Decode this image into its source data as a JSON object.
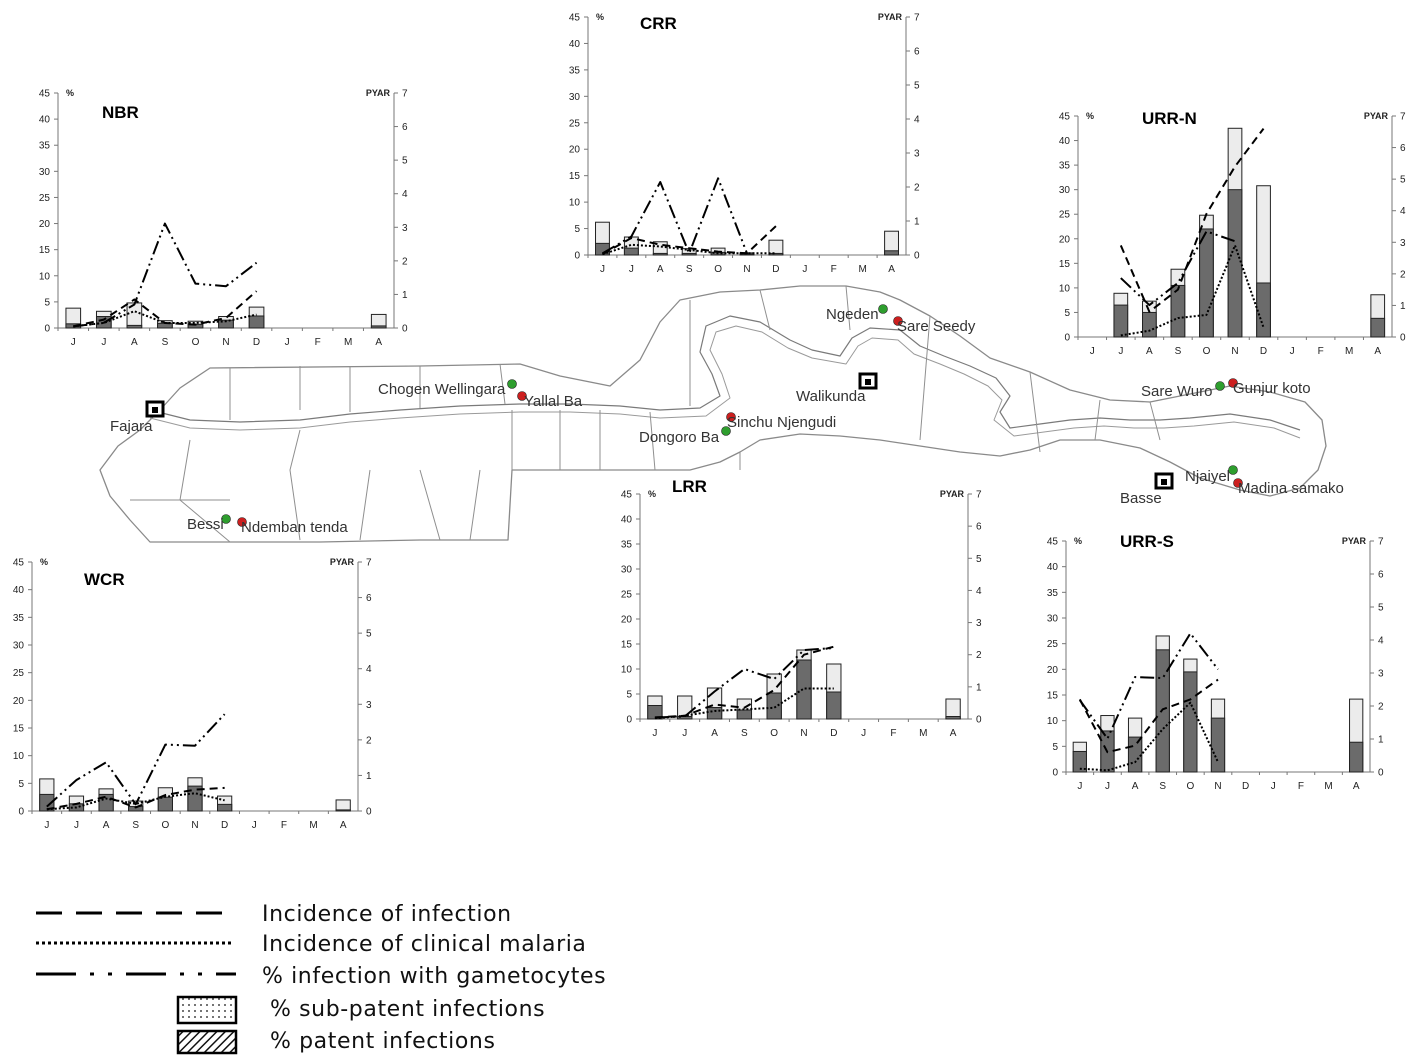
{
  "colors": {
    "patent_fill": "#6b6b6b",
    "subpatent_fill": "#ececec",
    "bar_stroke": "#222222",
    "green_village": "#2e9e2e",
    "red_village": "#cc1f1f",
    "map_line": "#8a8a8a"
  },
  "map": {
    "towns": [
      {
        "id": "fajara",
        "name": "Fajara"
      },
      {
        "id": "walikunda",
        "name": "Walikunda"
      },
      {
        "id": "basse",
        "name": "Basse"
      }
    ],
    "villages": [
      {
        "id": "chogen",
        "name": "Chogen Wellingara",
        "color": "green"
      },
      {
        "id": "yallal",
        "name": "Yallal Ba",
        "color": "red"
      },
      {
        "id": "ngeden",
        "name": "Ngeden",
        "color": "green"
      },
      {
        "id": "sareseedy",
        "name": "Sare Seedy",
        "color": "red"
      },
      {
        "id": "sarewuro",
        "name": "Sare Wuro",
        "color": "green"
      },
      {
        "id": "gunjur",
        "name": "Gunjur koto",
        "color": "red"
      },
      {
        "id": "dongoro",
        "name": "Dongoro Ba",
        "color": "green"
      },
      {
        "id": "sinchu",
        "name": "Sinchu Njengudi",
        "color": "red"
      },
      {
        "id": "njaiyel",
        "name": "Njaiyel",
        "color": "green"
      },
      {
        "id": "madina",
        "name": "Madina samako",
        "color": "red"
      },
      {
        "id": "bessi",
        "name": "Bessi",
        "color": "green"
      },
      {
        "id": "ndemban",
        "name": "Ndemban tenda",
        "color": "red"
      }
    ]
  },
  "chart_data": [
    {
      "id": "NBR",
      "type": "bar",
      "title": "NBR",
      "left_unit": "%",
      "right_unit": "PYAR",
      "categories": [
        "J",
        "J",
        "A",
        "S",
        "O",
        "N",
        "D",
        "J",
        "F",
        "M",
        "A"
      ],
      "ylim": [
        0,
        45
      ],
      "y_ticks": [
        0,
        5,
        10,
        15,
        20,
        25,
        30,
        35,
        40,
        45
      ],
      "y2lim": [
        0,
        7
      ],
      "y2_ticks": [
        0,
        1,
        2,
        3,
        4,
        5,
        6,
        7
      ],
      "patent": [
        0.8,
        2.2,
        0.5,
        0.9,
        0.7,
        1.5,
        2.3,
        null,
        null,
        null,
        0.4
      ],
      "total": [
        3.8,
        3.2,
        4.8,
        1.4,
        1.3,
        2.2,
        4.0,
        null,
        null,
        null,
        2.6
      ],
      "lines": [
        {
          "kind": "infection",
          "axis": "right",
          "values": [
            0.05,
            0.25,
            0.85,
            0.15,
            0.1,
            0.3,
            1.1,
            null,
            null,
            null,
            null
          ]
        },
        {
          "kind": "clinical",
          "axis": "right",
          "values": [
            0.05,
            0.15,
            0.5,
            0.15,
            0.15,
            0.2,
            0.4,
            null,
            null,
            null,
            null
          ]
        },
        {
          "kind": "gametocytes",
          "axis": "left",
          "values": [
            0.3,
            1.0,
            4.5,
            20,
            8.5,
            8.0,
            12.5,
            null,
            null,
            null,
            null
          ]
        }
      ]
    },
    {
      "id": "CRR",
      "type": "bar",
      "title": "CRR",
      "left_unit": "%",
      "right_unit": "PYAR",
      "categories": [
        "J",
        "J",
        "A",
        "S",
        "O",
        "N",
        "D",
        "J",
        "F",
        "M",
        "A"
      ],
      "ylim": [
        0,
        45
      ],
      "y_ticks": [
        0,
        5,
        10,
        15,
        20,
        25,
        30,
        35,
        40,
        45
      ],
      "y2lim": [
        0,
        7
      ],
      "y2_ticks": [
        0,
        1,
        2,
        3,
        4,
        5,
        6,
        7
      ],
      "patent": [
        2.2,
        1.3,
        0.3,
        0.3,
        0.5,
        0.2,
        0.3,
        null,
        null,
        null,
        0.8
      ],
      "total": [
        6.2,
        3.4,
        2.5,
        1.2,
        1.3,
        0.4,
        2.8,
        null,
        null,
        null,
        4.5
      ],
      "lines": [
        {
          "kind": "infection",
          "axis": "right",
          "values": [
            0.02,
            0.5,
            0.3,
            0.2,
            0.1,
            0.05,
            0.85,
            null,
            null,
            null,
            null
          ]
        },
        {
          "kind": "clinical",
          "axis": "right",
          "values": [
            0.02,
            0.3,
            0.25,
            0.15,
            0.05,
            0.05,
            0.05,
            null,
            null,
            null,
            null
          ]
        },
        {
          "kind": "gametocytes",
          "axis": "left",
          "values": [
            0.3,
            3.5,
            13.8,
            0.3,
            14.5,
            0.3,
            null,
            null,
            null,
            null,
            null
          ]
        }
      ]
    },
    {
      "id": "URR-N",
      "type": "bar",
      "title": "URR-N",
      "left_unit": "%",
      "right_unit": "PYAR",
      "categories": [
        "J",
        "J",
        "A",
        "S",
        "O",
        "N",
        "D",
        "J",
        "F",
        "M",
        "A"
      ],
      "ylim": [
        0,
        45
      ],
      "y_ticks": [
        0,
        5,
        10,
        15,
        20,
        25,
        30,
        35,
        40,
        45
      ],
      "y2lim": [
        0,
        7
      ],
      "y2_ticks": [
        0,
        1,
        2,
        3,
        4,
        5,
        6,
        7
      ],
      "patent": [
        null,
        6.5,
        5.0,
        10.5,
        22.0,
        30.0,
        11.0,
        null,
        null,
        null,
        3.8
      ],
      "total": [
        null,
        8.9,
        7.3,
        13.8,
        24.8,
        42.5,
        30.8,
        null,
        null,
        null,
        8.6
      ],
      "lines": [
        {
          "kind": "infection",
          "axis": "right",
          "values": [
            null,
            2.9,
            0.8,
            1.5,
            3.9,
            5.4,
            6.6,
            null,
            null,
            null,
            null
          ]
        },
        {
          "kind": "clinical",
          "axis": "right",
          "values": [
            null,
            0.05,
            0.2,
            0.6,
            0.7,
            2.9,
            0.3,
            null,
            null,
            null,
            null
          ]
        },
        {
          "kind": "gametocytes",
          "axis": "left",
          "values": [
            null,
            12,
            6.5,
            11,
            21.5,
            19.5,
            null,
            null,
            null,
            null,
            null
          ]
        }
      ]
    },
    {
      "id": "WCR",
      "type": "bar",
      "title": "WCR",
      "left_unit": "%",
      "right_unit": "PYAR",
      "categories": [
        "J",
        "J",
        "A",
        "S",
        "O",
        "N",
        "D",
        "J",
        "F",
        "M",
        "A"
      ],
      "ylim": [
        0,
        45
      ],
      "y_ticks": [
        0,
        5,
        10,
        15,
        20,
        25,
        30,
        35,
        40,
        45
      ],
      "y2lim": [
        0,
        7
      ],
      "y2_ticks": [
        0,
        1,
        2,
        3,
        4,
        5,
        6,
        7
      ],
      "patent": [
        3.0,
        1.3,
        3.0,
        0.8,
        2.5,
        4.5,
        1.2,
        null,
        null,
        null,
        0.2
      ],
      "total": [
        5.8,
        2.7,
        4.0,
        1.8,
        4.2,
        6.0,
        2.7,
        null,
        null,
        null,
        2.0
      ],
      "lines": [
        {
          "kind": "infection",
          "axis": "right",
          "values": [
            0.05,
            0.2,
            0.4,
            0.1,
            0.45,
            0.6,
            0.65,
            null,
            null,
            null,
            null
          ]
        },
        {
          "kind": "clinical",
          "axis": "right",
          "values": [
            0.05,
            0.1,
            0.35,
            0.2,
            0.4,
            0.5,
            0.3,
            null,
            null,
            null,
            null
          ]
        },
        {
          "kind": "gametocytes",
          "axis": "left",
          "values": [
            0.8,
            5.6,
            8.8,
            1.2,
            12.0,
            11.8,
            17.5,
            null,
            null,
            null,
            null
          ]
        }
      ]
    },
    {
      "id": "LRR",
      "type": "bar",
      "title": "LRR",
      "left_unit": "%",
      "right_unit": "PYAR",
      "categories": [
        "J",
        "J",
        "A",
        "S",
        "O",
        "N",
        "D",
        "J",
        "F",
        "M",
        "A"
      ],
      "ylim": [
        0,
        45
      ],
      "y_ticks": [
        0,
        5,
        10,
        15,
        20,
        25,
        30,
        35,
        40,
        45
      ],
      "y2lim": [
        0,
        7
      ],
      "y2_ticks": [
        0,
        1,
        2,
        3,
        4,
        5,
        6,
        7
      ],
      "patent": [
        2.7,
        0.5,
        2.3,
        1.8,
        5.2,
        11.8,
        5.4,
        null,
        null,
        null,
        0.5
      ],
      "total": [
        4.6,
        4.6,
        6.2,
        4.0,
        9.0,
        13.8,
        11.0,
        null,
        null,
        null,
        4.0
      ],
      "lines": [
        {
          "kind": "infection",
          "axis": "right",
          "values": [
            0.05,
            0.1,
            0.45,
            0.35,
            0.9,
            2.0,
            2.25,
            null,
            null,
            null,
            null
          ]
        },
        {
          "kind": "clinical",
          "axis": "right",
          "values": [
            0.02,
            0.1,
            0.25,
            0.3,
            0.35,
            0.95,
            0.95,
            null,
            null,
            null,
            null
          ]
        },
        {
          "kind": "gametocytes",
          "axis": "left",
          "values": [
            0.3,
            0.5,
            5.5,
            10.0,
            8.0,
            13.8,
            14.2,
            null,
            null,
            null,
            null
          ]
        }
      ]
    },
    {
      "id": "URR-S",
      "type": "bar",
      "title": "URR-S",
      "left_unit": "%",
      "right_unit": "PYAR",
      "categories": [
        "J",
        "J",
        "A",
        "S",
        "O",
        "N",
        "D",
        "J",
        "F",
        "M",
        "A"
      ],
      "ylim": [
        0,
        45
      ],
      "y_ticks": [
        0,
        5,
        10,
        15,
        20,
        25,
        30,
        35,
        40,
        45
      ],
      "y2lim": [
        0,
        7
      ],
      "y2_ticks": [
        0,
        1,
        2,
        3,
        4,
        5,
        6,
        7
      ],
      "patent": [
        4.0,
        8.0,
        6.8,
        23.8,
        19.5,
        10.5,
        null,
        null,
        null,
        null,
        5.8
      ],
      "total": [
        5.8,
        11.0,
        10.5,
        26.5,
        22.0,
        14.2,
        null,
        null,
        null,
        null,
        14.2
      ],
      "lines": [
        {
          "kind": "infection",
          "axis": "right",
          "values": [
            2.2,
            0.6,
            0.8,
            1.9,
            2.2,
            2.8,
            null,
            null,
            null,
            null,
            null
          ]
        },
        {
          "kind": "clinical",
          "axis": "right",
          "values": [
            0.1,
            0.05,
            0.3,
            1.3,
            2.1,
            0.3,
            null,
            null,
            null,
            null,
            null
          ]
        },
        {
          "kind": "gametocytes",
          "axis": "left",
          "values": [
            14.0,
            6.5,
            18.5,
            18.3,
            27.0,
            20.0,
            null,
            null,
            null,
            null,
            null
          ]
        }
      ]
    }
  ],
  "legend": [
    {
      "kind": "infection",
      "label": "Incidence of infection"
    },
    {
      "kind": "clinical",
      "label": "Incidence of clinical malaria"
    },
    {
      "kind": "gametocytes",
      "label": "% infection with gametocytes"
    },
    {
      "kind": "subpatent",
      "label": "% sub-patent infections"
    },
    {
      "kind": "patent",
      "label": "% patent infections"
    }
  ]
}
